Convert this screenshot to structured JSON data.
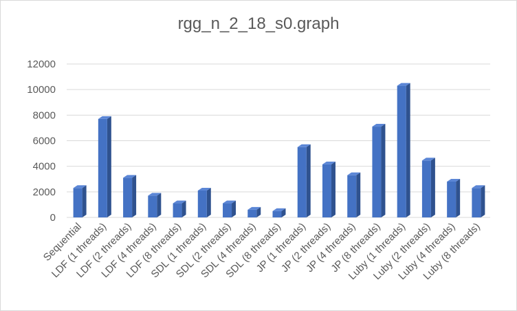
{
  "chart_data": {
    "type": "bar",
    "title": "rgg_n_2_18_s0.graph",
    "xlabel": "",
    "ylabel": "",
    "ylim": [
      0,
      12000
    ],
    "yticks": [
      0,
      2000,
      4000,
      6000,
      8000,
      10000,
      12000
    ],
    "grid": true,
    "legend": "none",
    "style": "3d-column",
    "colors": {
      "bar_front": "#4472c4",
      "bar_side": "#2f528f",
      "bar_top": "#5b86d6",
      "grid": "#d9d9d9",
      "text": "#595959"
    },
    "categories": [
      "Sequential",
      "LDF (1 threads)",
      "LDF (2 threads)",
      "LDF (4 threads)",
      "LDF (8 threads)",
      "SDL (1 threads)",
      "SDL (2 threads)",
      "SDL (4 threads)",
      "SDL (8 threads)",
      "JP (1 threads)",
      "JP (2 threads)",
      "JP (4 threads)",
      "JP (8 threads)",
      "Luby (1 threads)",
      "Luby (2 threads)",
      "Luby (4 threads)",
      "Luby (8 threads)"
    ],
    "values": [
      2300,
      7700,
      3100,
      1700,
      1100,
      2100,
      1100,
      600,
      500,
      5500,
      4150,
      3300,
      7100,
      10300,
      4450,
      2800,
      2300
    ]
  }
}
